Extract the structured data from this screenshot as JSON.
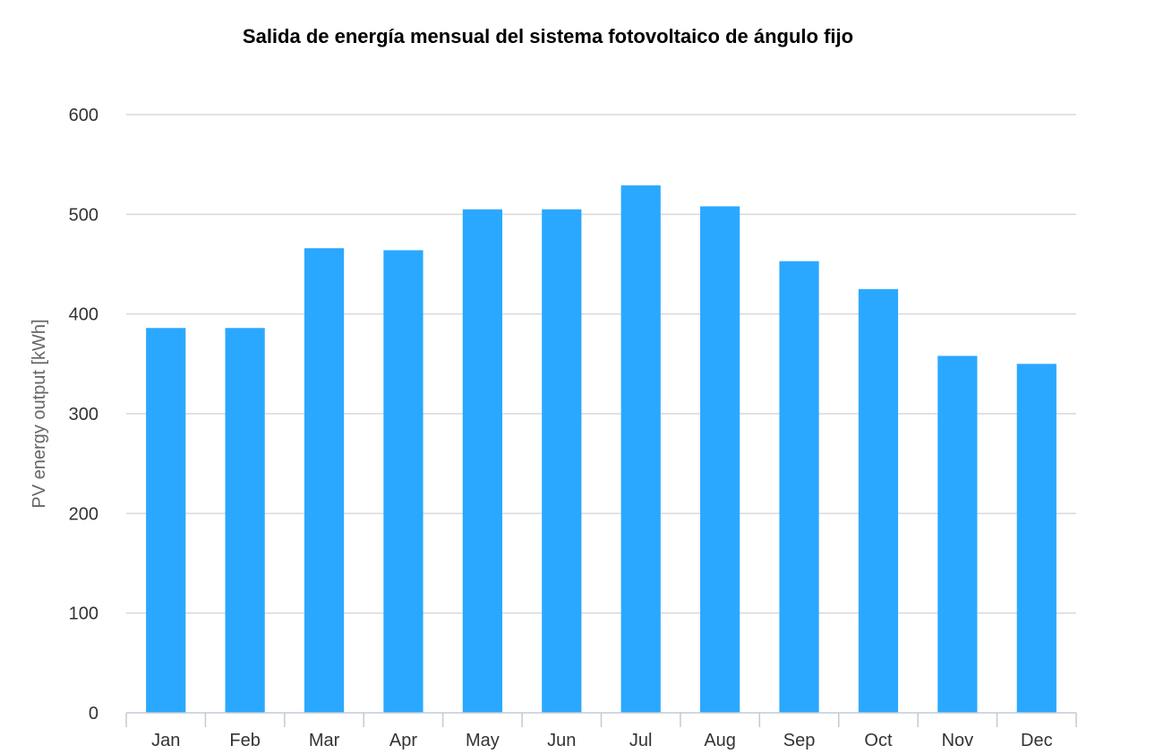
{
  "chart_data": {
    "type": "bar",
    "title": "Salida de energía mensual del sistema fotovoltaico de ángulo fijo",
    "xlabel": "",
    "ylabel": "PV energy output [kWh]",
    "categories": [
      "Jan",
      "Feb",
      "Mar",
      "Apr",
      "May",
      "Jun",
      "Jul",
      "Aug",
      "Sep",
      "Oct",
      "Nov",
      "Dec"
    ],
    "series": [
      {
        "values": [
          386,
          386,
          466,
          464,
          505,
          505,
          529,
          508,
          453,
          425,
          358,
          350
        ],
        "color": "#2aa8ff"
      }
    ],
    "ylim": [
      0,
      600
    ],
    "yticks": [
      0,
      100,
      200,
      300,
      400,
      500,
      600
    ],
    "grid": true,
    "legend": "none"
  }
}
